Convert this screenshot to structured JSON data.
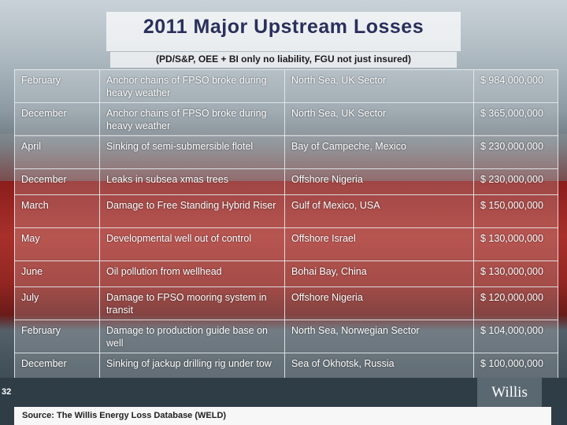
{
  "title": "2011 Major Upstream Losses",
  "subtitle": "(PD/S&P, OEE + BI only no liability, FGU not just insured)",
  "rows": [
    {
      "month": "February",
      "description": "Anchor chains of FPSO broke during heavy weather",
      "location": "North Sea, UK Sector",
      "amount": "$ 984,000,000"
    },
    {
      "month": "December",
      "description": "Anchor chains of FPSO broke during heavy weather",
      "location": "North Sea, UK Sector",
      "amount": "$ 365,000,000"
    },
    {
      "month": "April",
      "description": "Sinking of semi-submersible flotel",
      "location": "Bay of Campeche, Mexico",
      "amount": "$ 230,000,000"
    },
    {
      "month": "December",
      "description": "Leaks in subsea xmas trees",
      "location": "Offshore Nigeria",
      "amount": "$ 230,000,000"
    },
    {
      "month": "March",
      "description": "Damage to Free Standing Hybrid Riser",
      "location": "Gulf of Mexico, USA",
      "amount": "$ 150,000,000"
    },
    {
      "month": "May",
      "description": "Developmental well out of control",
      "location": "Offshore Israel",
      "amount": "$ 130,000,000"
    },
    {
      "month": "June",
      "description": "Oil pollution from wellhead",
      "location": "Bohai Bay, China",
      "amount": "$ 130,000,000"
    },
    {
      "month": "July",
      "description": "Damage to FPSO mooring system in transit",
      "location": "Offshore Nigeria",
      "amount": "$ 120,000,000"
    },
    {
      "month": "February",
      "description": "Damage to production guide base on well",
      "location": "North Sea, Norwegian Sector",
      "amount": "$ 104,000,000"
    },
    {
      "month": "December",
      "description": "Sinking of jackup drilling rig under tow",
      "location": "Sea of Okhotsk, Russia",
      "amount": "$ 100,000,000"
    }
  ],
  "page_number": "32",
  "source": "Source: The Willis Energy Loss Database (WELD)",
  "logo_text": "Willis"
}
